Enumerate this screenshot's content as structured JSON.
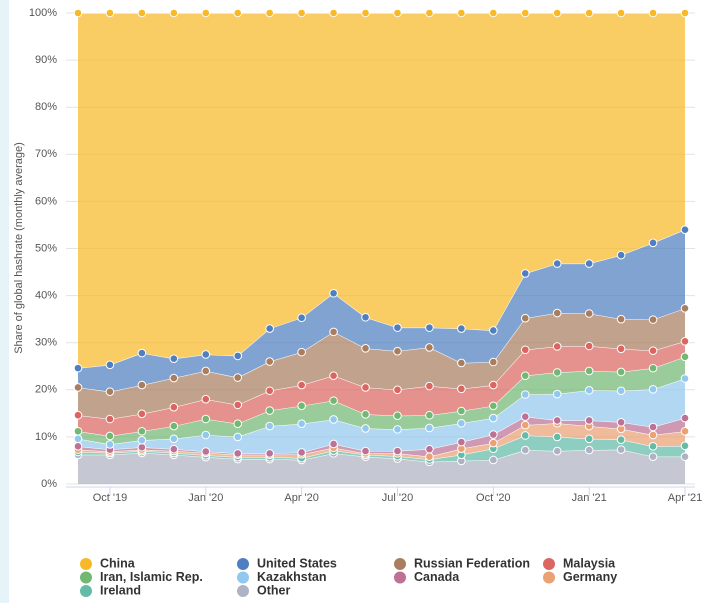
{
  "chart_data": {
    "type": "stacked-area",
    "y_label": "Share of global hashrate (monthly average)",
    "categories": [
      null,
      "Oct '19",
      null,
      null,
      "Jan '20",
      null,
      null,
      "Apr '20",
      null,
      null,
      "Jul '20",
      null,
      null,
      "Oct '20",
      null,
      null,
      "Jan '21",
      null,
      null,
      "Apr '21"
    ],
    "ylim": [
      0,
      100
    ],
    "yticks": [
      {
        "value": 0,
        "label": "0%"
      },
      {
        "value": 10,
        "label": "10%"
      },
      {
        "value": 20,
        "label": "20%"
      },
      {
        "value": 30,
        "label": "30%"
      },
      {
        "value": 40,
        "label": "40%"
      },
      {
        "value": 50,
        "label": "50%"
      },
      {
        "value": 60,
        "label": "60%"
      },
      {
        "value": 70,
        "label": "70%"
      },
      {
        "value": 80,
        "label": "80%"
      },
      {
        "value": 90,
        "label": "90%"
      },
      {
        "value": 100,
        "label": "100%"
      }
    ],
    "grid": true,
    "legend": "bottom",
    "series": [
      {
        "name": "China",
        "color": "#f7b928",
        "values": [
          75.4,
          74.7,
          72.2,
          73.4,
          72.5,
          72.8,
          67,
          64.7,
          59.5,
          64.6,
          66.8,
          66.8,
          67,
          67.4,
          55.3,
          53.2,
          53.2,
          51.4,
          48.8,
          46
        ]
      },
      {
        "name": "United States",
        "color": "#4f7fc0",
        "values": [
          4.1,
          5.7,
          6.8,
          4.1,
          3.5,
          4.6,
          7.0,
          7.3,
          8.2,
          6.6,
          5.0,
          4.2,
          7.3,
          6.7,
          9.5,
          10.5,
          10.6,
          13.6,
          16.3,
          16.7
        ]
      },
      {
        "name": "Russian Federation",
        "color": "#a97e60",
        "values": [
          5.9,
          5.8,
          6.1,
          6.2,
          6.0,
          5.8,
          6.2,
          7.0,
          9.3,
          8.3,
          8.2,
          8.2,
          5.5,
          4.9,
          6.7,
          7.1,
          6.9,
          6.3,
          6.6,
          7.0
        ]
      },
      {
        "name": "Malaysia",
        "color": "#db6661",
        "values": [
          3.4,
          3.6,
          3.7,
          4.0,
          4.2,
          4.0,
          4.2,
          4.4,
          5.3,
          5.7,
          5.5,
          6.2,
          4.7,
          4.4,
          5.5,
          5.5,
          5.3,
          4.9,
          3.7,
          3.3
        ]
      },
      {
        "name": "Iran, Islamic Rep.",
        "color": "#72b873",
        "values": [
          1.6,
          1.8,
          1.9,
          2.7,
          3.4,
          2.8,
          3.3,
          3.8,
          4.0,
          3.0,
          2.9,
          2.7,
          2.6,
          2.6,
          4.0,
          4.6,
          4.1,
          4.0,
          4.5,
          4.6
        ]
      },
      {
        "name": "Kazakhstan",
        "color": "#93c8ee",
        "values": [
          1.6,
          1.1,
          1.5,
          2.2,
          3.5,
          3.5,
          5.8,
          6.1,
          5.2,
          4.8,
          4.6,
          4.5,
          4.0,
          3.5,
          4.7,
          5.6,
          6.4,
          6.7,
          8.0,
          8.4
        ]
      },
      {
        "name": "Canada",
        "color": "#bc7195",
        "values": [
          0.7,
          0.4,
          0.5,
          0.4,
          0.3,
          0.3,
          0.3,
          0.4,
          0.8,
          0.5,
          0.5,
          1.6,
          1.4,
          1.8,
          1.8,
          0.6,
          1.2,
          1.4,
          1.7,
          2.8
        ]
      },
      {
        "name": "Germany",
        "color": "#eaa173",
        "values": [
          0.5,
          0.3,
          0.3,
          0.4,
          0.5,
          0.5,
          0.5,
          0.8,
          0.6,
          0.3,
          0.6,
          0.6,
          1.3,
          1.2,
          2.2,
          2.9,
          2.7,
          2.3,
          2.4,
          3.1
        ]
      },
      {
        "name": "Ireland",
        "color": "#63bba8",
        "values": [
          0.6,
          0.4,
          0.4,
          0.4,
          0.4,
          0.4,
          0.4,
          0.4,
          0.6,
          0.4,
          0.5,
          0.5,
          1.3,
          2.4,
          3.1,
          3.0,
          2.4,
          2.1,
          2.2,
          2.3
        ]
      },
      {
        "name": "Other",
        "color": "#aeb2c2",
        "values": [
          6.2,
          6.2,
          6.6,
          6.2,
          5.7,
          5.3,
          5.3,
          5.1,
          6.5,
          5.8,
          5.4,
          4.7,
          4.9,
          5.1,
          7.2,
          7.0,
          7.2,
          7.3,
          5.8,
          5.8
        ]
      }
    ]
  }
}
